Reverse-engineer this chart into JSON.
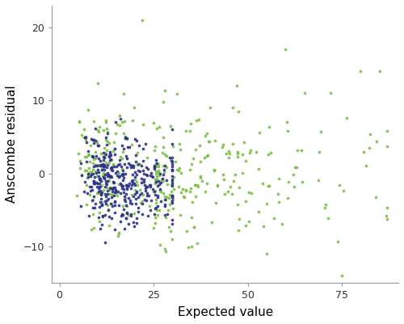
{
  "xlabel": "Expected value",
  "ylabel": "Anscombe residual",
  "xlim": [
    -2,
    90
  ],
  "ylim": [
    -15,
    23
  ],
  "xticks": [
    0,
    25,
    50,
    75
  ],
  "yticks": [
    -10,
    0,
    10,
    20
  ],
  "pre_color": "#7bc143",
  "post_color": "#2d328a",
  "dot_size": 7,
  "dot_alpha": 0.9,
  "background_color": "#ffffff",
  "spine_color": "#999999",
  "tick_label_size": 9,
  "axis_label_size": 11
}
